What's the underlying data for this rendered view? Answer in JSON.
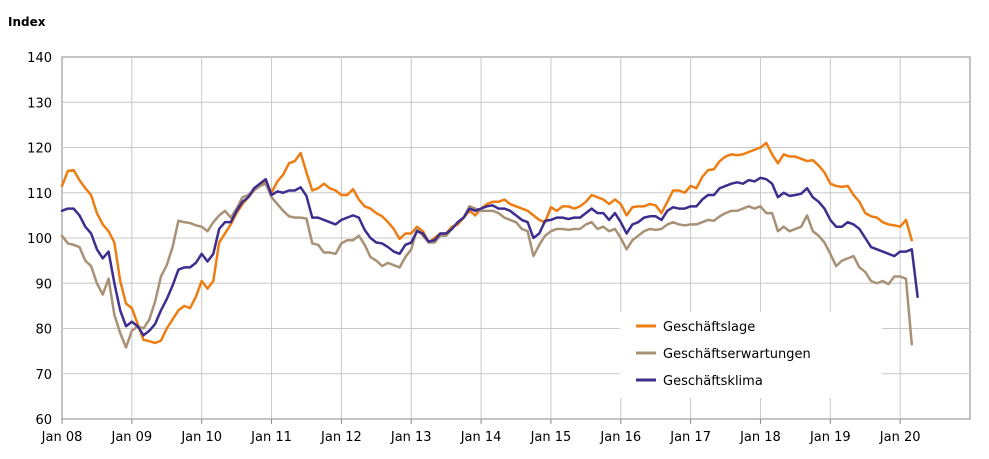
{
  "chart_data": {
    "type": "line",
    "title": "",
    "ylabel": "Index",
    "xlabel": "",
    "ylim": [
      60,
      140
    ],
    "yticks": [
      60,
      70,
      80,
      90,
      100,
      110,
      120,
      130,
      140
    ],
    "xlim": [
      "2008-01",
      "2020-12"
    ],
    "xticks": [
      "Jan 08",
      "Jan 09",
      "Jan 10",
      "Jan 11",
      "Jan 12",
      "Jan 13",
      "Jan 14",
      "Jan 15",
      "Jan 16",
      "Jan 17",
      "Jan 18",
      "Jan 19",
      "Jan 20"
    ],
    "grid": true,
    "legend_position": "bottom-right",
    "start": "2008-01",
    "series": [
      {
        "name": "Geschäftslage",
        "color": "#ED7D12",
        "values": [
          111.5,
          114.8,
          115.0,
          112.8,
          111.0,
          109.5,
          105.5,
          103.0,
          101.5,
          99.0,
          90.5,
          85.5,
          84.5,
          81.0,
          77.5,
          77.2,
          76.8,
          77.3,
          80.0,
          82.0,
          84.0,
          85.0,
          84.5,
          87.0,
          90.5,
          88.8,
          90.5,
          99.0,
          101.0,
          103.0,
          105.5,
          107.5,
          109.0,
          110.5,
          112.0,
          112.5,
          110.0,
          112.5,
          114.0,
          116.5,
          117.0,
          118.8,
          114.5,
          110.5,
          111.0,
          112.0,
          111.0,
          110.5,
          109.5,
          109.5,
          110.8,
          108.5,
          107.0,
          106.5,
          105.5,
          104.8,
          103.5,
          102.0,
          99.8,
          101.0,
          101.0,
          102.5,
          101.5,
          99.0,
          100.0,
          101.0,
          101.0,
          102.5,
          103.0,
          104.5,
          106.0,
          105.0,
          106.5,
          107.5,
          108.0,
          108.0,
          108.5,
          107.5,
          107.0,
          106.5,
          106.0,
          105.0,
          104.0,
          103.5,
          106.8,
          106.0,
          107.0,
          107.0,
          106.5,
          107.0,
          108.0,
          109.5,
          109.0,
          108.5,
          107.5,
          108.5,
          107.5,
          105.0,
          106.8,
          107.0,
          107.0,
          107.5,
          107.2,
          105.5,
          108.0,
          110.5,
          110.5,
          110.0,
          111.5,
          111.0,
          113.5,
          115.0,
          115.2,
          117.0,
          118.0,
          118.5,
          118.3,
          118.5,
          119.0,
          119.5,
          120.0,
          121.0,
          118.5,
          116.5,
          118.5,
          118.0,
          118.0,
          117.5,
          117.0,
          117.2,
          116.0,
          114.5,
          112.0,
          111.5,
          111.3,
          111.5,
          109.5,
          108.0,
          105.5,
          104.8,
          104.5,
          103.5,
          103.0,
          102.8,
          102.5,
          104.0,
          99.5
        ]
      },
      {
        "name": "Geschäftserwartungen",
        "color": "#A89175",
        "values": [
          100.5,
          98.8,
          98.5,
          98.0,
          95.0,
          93.8,
          90.0,
          87.5,
          91.0,
          83.0,
          79.0,
          75.8,
          79.5,
          80.5,
          80.0,
          82.0,
          86.0,
          91.5,
          94.0,
          98.0,
          103.8,
          103.5,
          103.3,
          102.8,
          102.5,
          101.5,
          103.5,
          105.0,
          106.0,
          104.5,
          106.5,
          109.0,
          109.5,
          110.5,
          111.5,
          112.0,
          109.0,
          107.5,
          106.0,
          104.8,
          104.5,
          104.5,
          104.3,
          98.8,
          98.5,
          96.8,
          96.8,
          96.5,
          98.8,
          99.5,
          99.5,
          100.5,
          98.5,
          95.8,
          95.0,
          93.8,
          94.5,
          94.0,
          93.5,
          95.8,
          97.5,
          102.0,
          100.5,
          99.0,
          99.0,
          100.5,
          100.5,
          102.0,
          103.5,
          104.5,
          107.0,
          106.5,
          106.0,
          106.0,
          106.0,
          105.5,
          104.5,
          104.0,
          103.5,
          102.0,
          101.5,
          96.0,
          98.5,
          100.5,
          101.5,
          102.0,
          102.0,
          101.8,
          102.0,
          102.0,
          103.0,
          103.5,
          102.0,
          102.5,
          101.5,
          102.0,
          100.0,
          97.5,
          99.5,
          100.5,
          101.5,
          102.0,
          101.8,
          102.0,
          103.0,
          103.5,
          103.0,
          102.8,
          103.0,
          103.0,
          103.5,
          104.0,
          103.8,
          104.8,
          105.5,
          106.0,
          106.0,
          106.5,
          107.0,
          106.5,
          107.0,
          105.5,
          105.5,
          101.5,
          102.5,
          101.5,
          102.0,
          102.5,
          105.0,
          101.5,
          100.5,
          99.0,
          96.5,
          93.8,
          95.0,
          95.5,
          96.0,
          93.5,
          92.5,
          90.5,
          90.0,
          90.5,
          89.8,
          91.5,
          91.5,
          91.0,
          76.5
        ]
      },
      {
        "name": "Geschäftsklima",
        "color": "#3E2D8F",
        "values": [
          106.0,
          106.5,
          106.5,
          105.0,
          102.5,
          101.0,
          97.5,
          95.5,
          97.0,
          90.0,
          84.0,
          80.5,
          81.5,
          80.5,
          78.5,
          79.5,
          81.0,
          84.0,
          86.5,
          89.5,
          93.0,
          93.5,
          93.5,
          94.5,
          96.5,
          94.8,
          96.5,
          102.0,
          103.5,
          103.5,
          106.0,
          108.0,
          109.0,
          111.0,
          112.0,
          113.0,
          109.5,
          110.3,
          110.0,
          110.5,
          110.5,
          111.2,
          109.3,
          104.5,
          104.5,
          104.0,
          103.5,
          103.0,
          104.0,
          104.5,
          105.0,
          104.5,
          101.8,
          100.0,
          99.0,
          98.8,
          98.0,
          97.0,
          96.5,
          98.5,
          99.0,
          101.5,
          101.0,
          99.2,
          99.5,
          101.0,
          101.0,
          102.0,
          103.5,
          104.5,
          106.5,
          106.0,
          106.5,
          107.0,
          107.2,
          106.5,
          106.5,
          106.0,
          105.0,
          104.0,
          103.5,
          100.0,
          101.0,
          103.8,
          104.0,
          104.5,
          104.5,
          104.2,
          104.5,
          104.5,
          105.5,
          106.5,
          105.5,
          105.5,
          104.0,
          105.5,
          103.5,
          101.0,
          103.0,
          103.5,
          104.5,
          104.8,
          104.8,
          104.0,
          106.0,
          106.8,
          106.5,
          106.5,
          107.0,
          107.0,
          108.5,
          109.5,
          109.5,
          111.0,
          111.5,
          112.0,
          112.3,
          112.0,
          112.8,
          112.5,
          113.3,
          113.0,
          112.0,
          109.0,
          110.0,
          109.3,
          109.5,
          109.8,
          111.0,
          109.0,
          108.0,
          106.5,
          104.0,
          102.5,
          102.5,
          103.5,
          103.0,
          102.0,
          100.0,
          98.0,
          97.5,
          97.0,
          96.5,
          96.0,
          97.0,
          97.0,
          97.5,
          87.0
        ]
      }
    ]
  }
}
